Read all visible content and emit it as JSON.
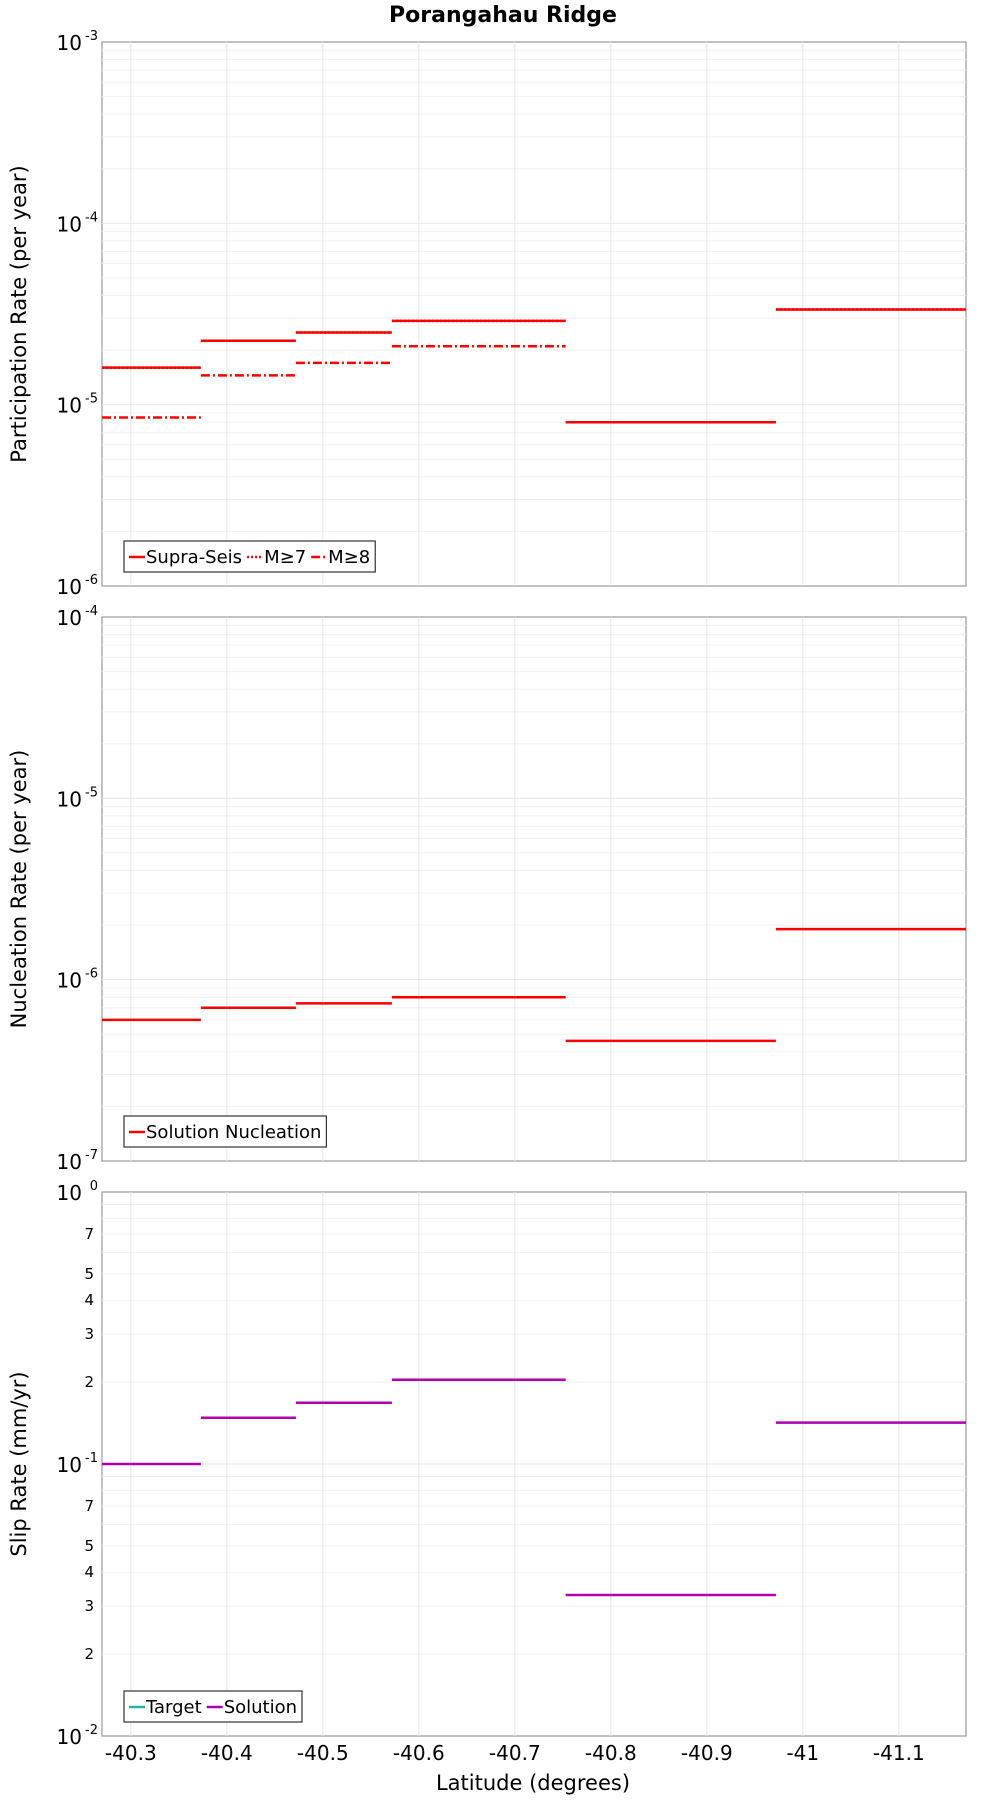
{
  "title": "Porangahau Ridge",
  "xlabel": "Latitude (degrees)",
  "x_ticks": [
    "-40.3",
    "-40.4",
    "-40.5",
    "-40.6",
    "-40.7",
    "-40.8",
    "-40.9",
    "-41",
    "-41.1"
  ],
  "chart_data": [
    {
      "type": "line",
      "ylabel": "Participation Rate (per year)",
      "yscale": "log",
      "ylim": [
        1e-06,
        0.001
      ],
      "xlim": [
        -40.27,
        -41.17
      ],
      "grid": true,
      "legend_position": "bottom-left",
      "y_tick_labels": [
        {
          "base": "10",
          "exp": "-3"
        },
        {
          "base": "10",
          "exp": "-4"
        },
        {
          "base": "10",
          "exp": "-5"
        },
        {
          "base": "10",
          "exp": "-6"
        }
      ],
      "series": [
        {
          "name": "Supra-Seis",
          "color": "#ff0000",
          "dash": "solid",
          "segments": [
            {
              "x": [
                -40.27,
                -40.373
              ],
              "y": 1.6e-05
            },
            {
              "x": [
                -40.373,
                -40.472
              ],
              "y": 2.25e-05
            },
            {
              "x": [
                -40.472,
                -40.572
              ],
              "y": 2.5e-05
            },
            {
              "x": [
                -40.572,
                -40.753
              ],
              "y": 2.9e-05
            },
            {
              "x": [
                -40.753,
                -40.972
              ],
              "y": 8e-06
            },
            {
              "x": [
                -40.972,
                -41.17
              ],
              "y": 3.35e-05
            }
          ]
        },
        {
          "name": "M≥7",
          "color": "#ff0000",
          "dash": "dotted",
          "segments": [
            {
              "x": [
                -40.27,
                -40.373
              ],
              "y": 1.6e-05
            },
            {
              "x": [
                -40.373,
                -40.472
              ],
              "y": 2.25e-05
            },
            {
              "x": [
                -40.472,
                -40.572
              ],
              "y": 2.5e-05
            },
            {
              "x": [
                -40.572,
                -40.753
              ],
              "y": 2.9e-05
            },
            {
              "x": [
                -40.753,
                -40.972
              ],
              "y": 8e-06
            },
            {
              "x": [
                -40.972,
                -41.17
              ],
              "y": 3.35e-05
            }
          ]
        },
        {
          "name": "M≥8",
          "color": "#ff0000",
          "dash": "dashdot",
          "segments": [
            {
              "x": [
                -40.27,
                -40.373
              ],
              "y": 8.5e-06
            },
            {
              "x": [
                -40.373,
                -40.472
              ],
              "y": 1.45e-05
            },
            {
              "x": [
                -40.472,
                -40.572
              ],
              "y": 1.7e-05
            },
            {
              "x": [
                -40.572,
                -40.753
              ],
              "y": 2.1e-05
            }
          ]
        }
      ]
    },
    {
      "type": "line",
      "ylabel": "Nucleation Rate (per year)",
      "yscale": "log",
      "ylim": [
        1e-07,
        0.0001
      ],
      "xlim": [
        -40.27,
        -41.17
      ],
      "grid": true,
      "legend_position": "bottom-left",
      "y_tick_labels": [
        {
          "base": "10",
          "exp": "-4"
        },
        {
          "base": "10",
          "exp": "-5"
        },
        {
          "base": "10",
          "exp": "-6"
        },
        {
          "base": "10",
          "exp": "-7"
        }
      ],
      "series": [
        {
          "name": "Solution Nucleation",
          "color": "#ff0000",
          "dash": "solid",
          "segments": [
            {
              "x": [
                -40.27,
                -40.373
              ],
              "y": 6e-07
            },
            {
              "x": [
                -40.373,
                -40.472
              ],
              "y": 7e-07
            },
            {
              "x": [
                -40.472,
                -40.572
              ],
              "y": 7.4e-07
            },
            {
              "x": [
                -40.572,
                -40.753
              ],
              "y": 8e-07
            },
            {
              "x": [
                -40.753,
                -40.972
              ],
              "y": 4.6e-07
            },
            {
              "x": [
                -40.972,
                -41.17
              ],
              "y": 1.9e-06
            }
          ]
        }
      ]
    },
    {
      "type": "line",
      "ylabel": "Slip Rate (mm/yr)",
      "yscale": "log",
      "ylim": [
        0.01,
        1
      ],
      "xlim": [
        -40.27,
        -41.17
      ],
      "grid": true,
      "legend_position": "bottom-left",
      "y_tick_labels": [
        {
          "base": "10",
          "exp": "0"
        },
        {
          "base": "10",
          "exp": "-1"
        },
        {
          "base": "10",
          "exp": "-2"
        }
      ],
      "y_minor_labels": [
        "7",
        "5",
        "4",
        "3",
        "2",
        "7",
        "5",
        "4",
        "3",
        "2"
      ],
      "series": [
        {
          "name": "Target",
          "color": "#20b2aa",
          "dash": "solid",
          "segments": []
        },
        {
          "name": "Solution",
          "color": "#b000b0",
          "dash": "solid",
          "segments": [
            {
              "x": [
                -40.27,
                -40.373
              ],
              "y": 0.1
            },
            {
              "x": [
                -40.373,
                -40.472
              ],
              "y": 0.148
            },
            {
              "x": [
                -40.472,
                -40.572
              ],
              "y": 0.168
            },
            {
              "x": [
                -40.572,
                -40.753
              ],
              "y": 0.204
            },
            {
              "x": [
                -40.753,
                -40.972
              ],
              "y": 0.033
            },
            {
              "x": [
                -40.972,
                -41.17
              ],
              "y": 0.142
            }
          ]
        }
      ]
    }
  ]
}
